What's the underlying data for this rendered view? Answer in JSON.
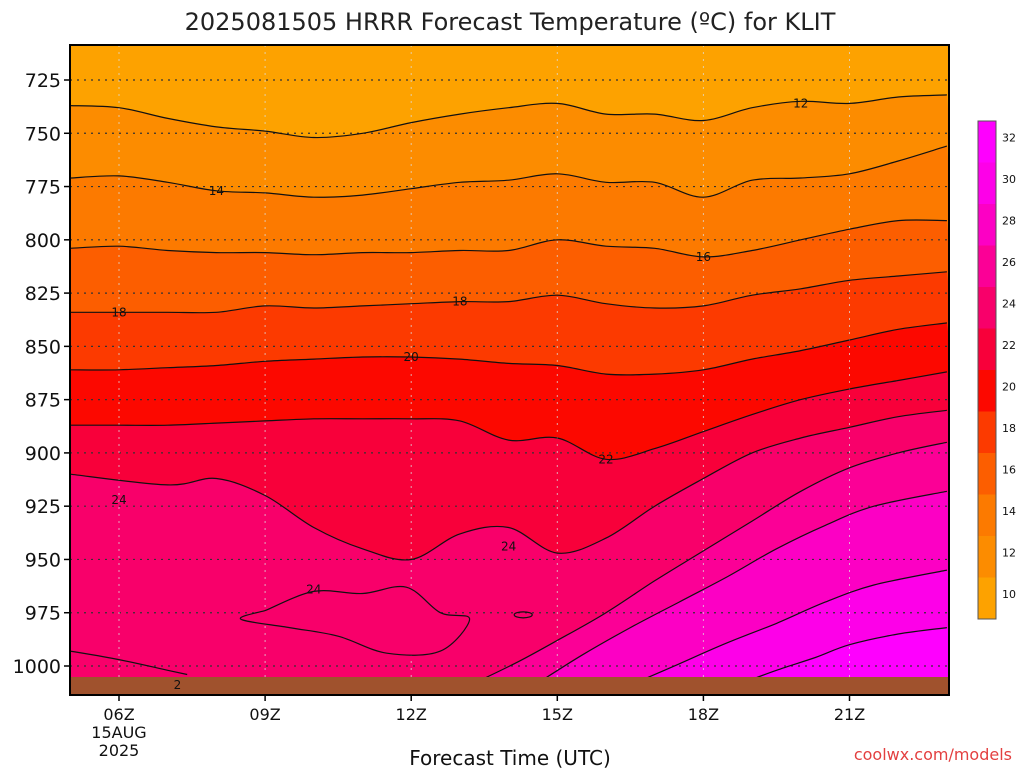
{
  "chart_data": {
    "type": "contour",
    "title": "2025081505 HRRR Forecast Temperature (ºC) for KLIT",
    "xlabel": "Forecast Time (UTC)",
    "ylabel": "",
    "credit": "coolwx.com/models",
    "x_ticks": [
      {
        "hour": 6,
        "label": "06Z",
        "sub1": "15AUG",
        "sub2": "2025"
      },
      {
        "hour": 9,
        "label": "09Z"
      },
      {
        "hour": 12,
        "label": "12Z"
      },
      {
        "hour": 15,
        "label": "15Z"
      },
      {
        "hour": 18,
        "label": "18Z"
      },
      {
        "hour": 21,
        "label": "21Z"
      }
    ],
    "xlim": [
      5,
      23
    ],
    "y_ticks": [
      725,
      750,
      775,
      800,
      825,
      850,
      875,
      900,
      925,
      950,
      975,
      1000
    ],
    "ylim": [
      704,
      1014
    ],
    "y_axis_reversed": true,
    "grid": "dotted",
    "colorbar": {
      "labels": [
        "10",
        "12",
        "14",
        "16",
        "18",
        "20",
        "22",
        "24",
        "26",
        "28",
        "30",
        "32"
      ],
      "levels": [
        10,
        12,
        14,
        16,
        18,
        20,
        22,
        24,
        26,
        28,
        30,
        32
      ],
      "colors": [
        "#fda200",
        "#fc8c00",
        "#fc7a00",
        "#fc5e00",
        "#fc3a00",
        "#fc0800",
        "#f8003a",
        "#f8006a",
        "#fb0096",
        "#fc00c4",
        "#fd00e8",
        "#fe00fe"
      ],
      "placement": "right"
    },
    "terrain_color": "#a0522d",
    "series": [
      {
        "level": 12,
        "pts": [
          [
            5,
            737
          ],
          [
            6,
            738
          ],
          [
            7,
            743
          ],
          [
            8,
            747
          ],
          [
            9,
            749
          ],
          [
            10,
            752
          ],
          [
            11,
            750
          ],
          [
            12,
            745
          ],
          [
            13,
            741
          ],
          [
            14,
            738
          ],
          [
            15,
            736
          ],
          [
            16,
            741
          ],
          [
            17,
            741
          ],
          [
            18,
            744
          ],
          [
            19,
            738
          ],
          [
            20,
            735
          ],
          [
            21,
            736
          ],
          [
            22,
            733
          ],
          [
            23,
            732
          ]
        ]
      },
      {
        "level": 14,
        "pts": [
          [
            5,
            771
          ],
          [
            6,
            770
          ],
          [
            7,
            773
          ],
          [
            8,
            777
          ],
          [
            9,
            778
          ],
          [
            10,
            780
          ],
          [
            11,
            779
          ],
          [
            12,
            776
          ],
          [
            13,
            773
          ],
          [
            14,
            772
          ],
          [
            15,
            769
          ],
          [
            16,
            773
          ],
          [
            17,
            773
          ],
          [
            18,
            780
          ],
          [
            19,
            772
          ],
          [
            20,
            771
          ],
          [
            21,
            769
          ],
          [
            22,
            763
          ],
          [
            23,
            756
          ]
        ]
      },
      {
        "level": 16,
        "pts": [
          [
            5,
            804
          ],
          [
            6,
            803
          ],
          [
            7,
            805
          ],
          [
            8,
            806
          ],
          [
            9,
            806
          ],
          [
            10,
            807
          ],
          [
            11,
            806
          ],
          [
            12,
            806
          ],
          [
            13,
            805
          ],
          [
            14,
            805
          ],
          [
            15,
            800
          ],
          [
            16,
            803
          ],
          [
            17,
            804
          ],
          [
            18,
            808
          ],
          [
            19,
            805
          ],
          [
            20,
            800
          ],
          [
            21,
            795
          ],
          [
            22,
            791
          ],
          [
            23,
            791
          ]
        ]
      },
      {
        "level": 18,
        "pts": [
          [
            5,
            834
          ],
          [
            6,
            834
          ],
          [
            7,
            834
          ],
          [
            8,
            834
          ],
          [
            9,
            831
          ],
          [
            10,
            832
          ],
          [
            11,
            831
          ],
          [
            12,
            830
          ],
          [
            13,
            829
          ],
          [
            14,
            829
          ],
          [
            15,
            826
          ],
          [
            16,
            830
          ],
          [
            17,
            832
          ],
          [
            18,
            831
          ],
          [
            19,
            826
          ],
          [
            20,
            823
          ],
          [
            21,
            819
          ],
          [
            22,
            817
          ],
          [
            23,
            815
          ]
        ]
      },
      {
        "level": 20,
        "pts": [
          [
            5,
            861
          ],
          [
            6,
            861
          ],
          [
            7,
            860
          ],
          [
            8,
            859
          ],
          [
            9,
            857
          ],
          [
            10,
            856
          ],
          [
            11,
            855
          ],
          [
            12,
            855
          ],
          [
            13,
            856
          ],
          [
            14,
            858
          ],
          [
            15,
            859
          ],
          [
            16,
            863
          ],
          [
            17,
            863
          ],
          [
            18,
            861
          ],
          [
            19,
            856
          ],
          [
            20,
            852
          ],
          [
            21,
            847
          ],
          [
            22,
            842
          ],
          [
            23,
            839
          ]
        ]
      },
      {
        "level": 22,
        "pts": [
          [
            5,
            887
          ],
          [
            6,
            887
          ],
          [
            7,
            887
          ],
          [
            8,
            886
          ],
          [
            9,
            885
          ],
          [
            10,
            884
          ],
          [
            11,
            884
          ],
          [
            12,
            884
          ],
          [
            13,
            885
          ],
          [
            14,
            894
          ],
          [
            15,
            893
          ],
          [
            16,
            903
          ],
          [
            17,
            898
          ],
          [
            18,
            890
          ],
          [
            19,
            882
          ],
          [
            20,
            875
          ],
          [
            21,
            870
          ],
          [
            22,
            866
          ],
          [
            23,
            862
          ]
        ]
      }
    ],
    "annotations": [
      {
        "text": "12",
        "x": 20.0,
        "p": 736
      },
      {
        "text": "14",
        "x": 8.0,
        "p": 777
      },
      {
        "text": "16",
        "x": 18.0,
        "p": 808
      },
      {
        "text": "18",
        "x": 6.0,
        "p": 834
      },
      {
        "text": "18",
        "x": 13.0,
        "p": 829
      },
      {
        "text": "20",
        "x": 12.0,
        "p": 855
      },
      {
        "text": "22",
        "x": 16.0,
        "p": 903
      },
      {
        "text": "24",
        "x": 6.0,
        "p": 922
      },
      {
        "text": "24",
        "x": 14.0,
        "p": 944
      },
      {
        "text": "24",
        "x": 10.0,
        "p": 964
      },
      {
        "text": "2",
        "x": 7.2,
        "p": 1009
      }
    ]
  }
}
